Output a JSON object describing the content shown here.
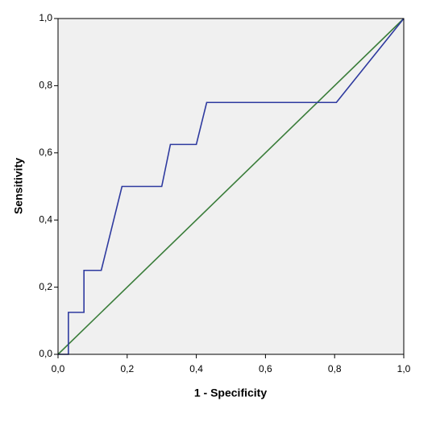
{
  "chart_data": {
    "type": "line",
    "xlabel": "1 - Specificity",
    "ylabel": "Sensitivity",
    "series": [
      {
        "color": "#2e3a9f",
        "x": [
          0,
          0.03,
          0.03,
          0.075,
          0.075,
          0.125,
          0.185,
          0.3,
          0.325,
          0.4,
          0.43,
          0.805,
          1
        ],
        "values": [
          0,
          0,
          0.125,
          0.125,
          0.25,
          0.25,
          0.5,
          0.5,
          0.625,
          0.625,
          0.75,
          0.75,
          1
        ]
      },
      {
        "color": "#3a7d3a",
        "x": [
          0,
          1
        ],
        "values": [
          0,
          1
        ]
      }
    ],
    "xlim": [
      0,
      1
    ],
    "ylim": [
      0,
      1
    ],
    "xticks": [
      {
        "value": 0,
        "label": "0,0"
      },
      {
        "value": 0.2,
        "label": "0,2"
      },
      {
        "value": 0.4,
        "label": "0,4"
      },
      {
        "value": 0.6,
        "label": "0,6"
      },
      {
        "value": 0.8,
        "label": "0,8"
      },
      {
        "value": 1,
        "label": "1,0"
      }
    ],
    "yticks": [
      {
        "value": 0,
        "label": "0,0"
      },
      {
        "value": 0.2,
        "label": "0,2"
      },
      {
        "value": 0.4,
        "label": "0,4"
      },
      {
        "value": 0.6,
        "label": "0,6"
      },
      {
        "value": 0.8,
        "label": "0,8"
      },
      {
        "value": 1,
        "label": "1,0"
      }
    ],
    "background": "#f0f0f0"
  }
}
